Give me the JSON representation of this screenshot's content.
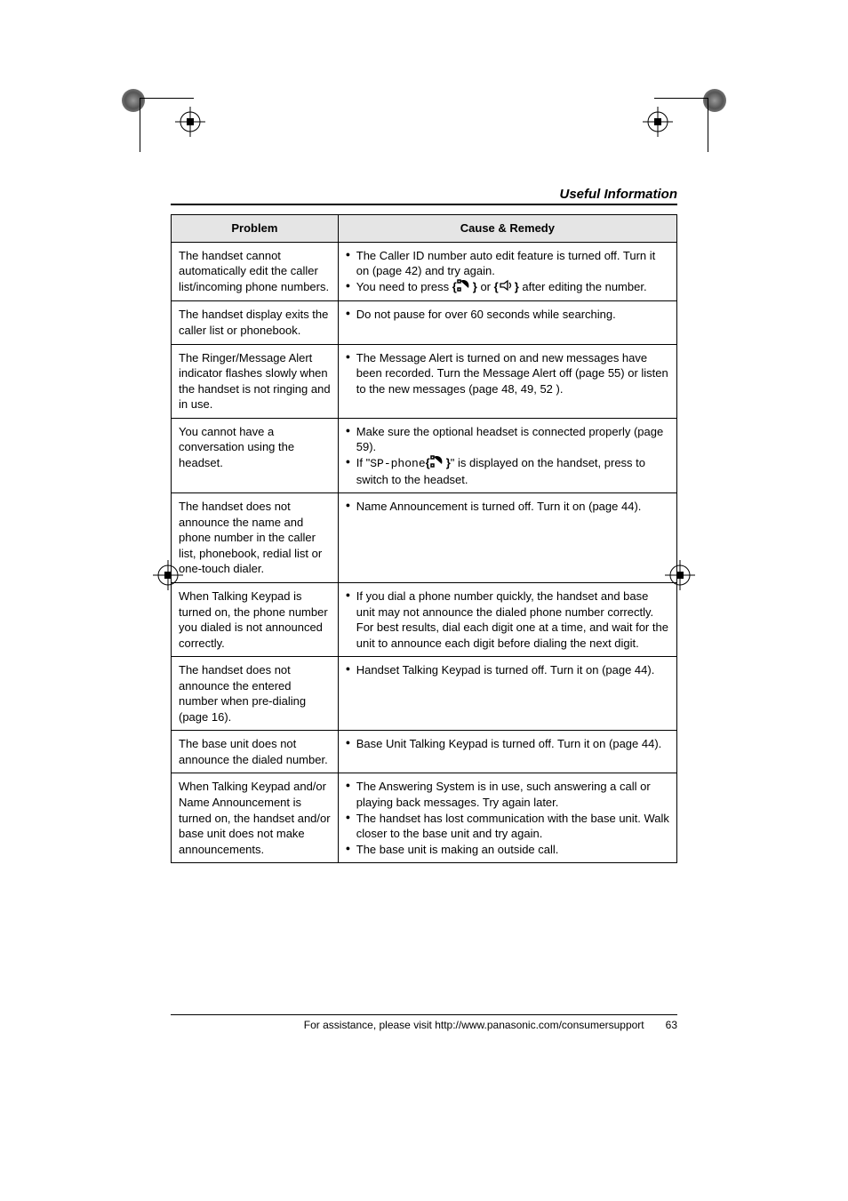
{
  "section_title": "Useful Information",
  "table": {
    "headers": {
      "problem": "Problem",
      "remedy": "Cause & Remedy"
    },
    "rows": [
      {
        "problem": "The handset cannot automatically edit the caller list/incoming phone numbers.",
        "remedy": [
          "The Caller ID number auto edit feature is turned off. Turn it on (page 42) and try again.",
          {
            "prefix": "You need to press ",
            "icon1": "phone-icon-a",
            "mid": " or ",
            "icon2": "phone-icon-b",
            "suffix": " after editing the number."
          }
        ]
      },
      {
        "problem": "The handset display exits the caller list or phonebook.",
        "remedy": [
          "Do not pause for over 60 seconds while searching."
        ]
      },
      {
        "problem": "The Ringer/Message Alert indicator flashes slowly when the handset is not ringing and in use.",
        "remedy": [
          "The Message Alert is turned on and new messages have been recorded. Turn the Message Alert off (page 55) or listen to the new messages (page 48, 49, 52 )."
        ]
      },
      {
        "problem": "You cannot have a conversation using the headset.",
        "remedy": [
          "Make sure the optional headset is connected properly (page 59).",
          {
            "prefix": "If \"",
            "mono": "SP-phone",
            "mid": "\" is displayed on the handset, press ",
            "icon1": "phone-icon-a",
            "suffix": " to switch to the headset."
          }
        ]
      },
      {
        "problem": "The handset does not announce the name and phone number in the caller list, phonebook, redial list or one-touch dialer.",
        "remedy": [
          "Name Announcement is turned off. Turn it on (page 44)."
        ]
      },
      {
        "problem": "When Talking Keypad is turned on, the phone number you dialed is not announced correctly.",
        "remedy": [
          "If you dial a phone number quickly, the handset and base unit may not announce the dialed phone number correctly. For best results, dial each digit one at a time, and wait for the unit to announce each digit before dialing the next digit."
        ]
      },
      {
        "problem": "The handset does not announce the entered number when pre-dialing (page 16).",
        "remedy": [
          "Handset Talking Keypad is turned off. Turn it on (page 44)."
        ]
      },
      {
        "problem": "The base unit does not announce the dialed number.",
        "remedy": [
          "Base Unit Talking Keypad is turned off. Turn it on (page 44)."
        ]
      },
      {
        "problem": "When Talking Keypad and/or Name Announcement is turned on, the handset and/or base unit does not make announcements.",
        "remedy": [
          "The Answering System is in use, such answering a call or playing back messages. Try again later.",
          "The handset has lost communication with the base unit. Walk closer to the base unit and try again.",
          "The base unit is making an outside call."
        ]
      }
    ]
  },
  "footer": {
    "text": "For assistance, please visit http://www.panasonic.com/consumersupport",
    "page": "63"
  },
  "colors": {
    "header_bg": "#e5e5e5",
    "border": "#000000",
    "text": "#000000",
    "page_bg": "#ffffff"
  },
  "typography": {
    "body_size_pt": 10,
    "title_size_pt": 11,
    "font_family": "Arial"
  }
}
